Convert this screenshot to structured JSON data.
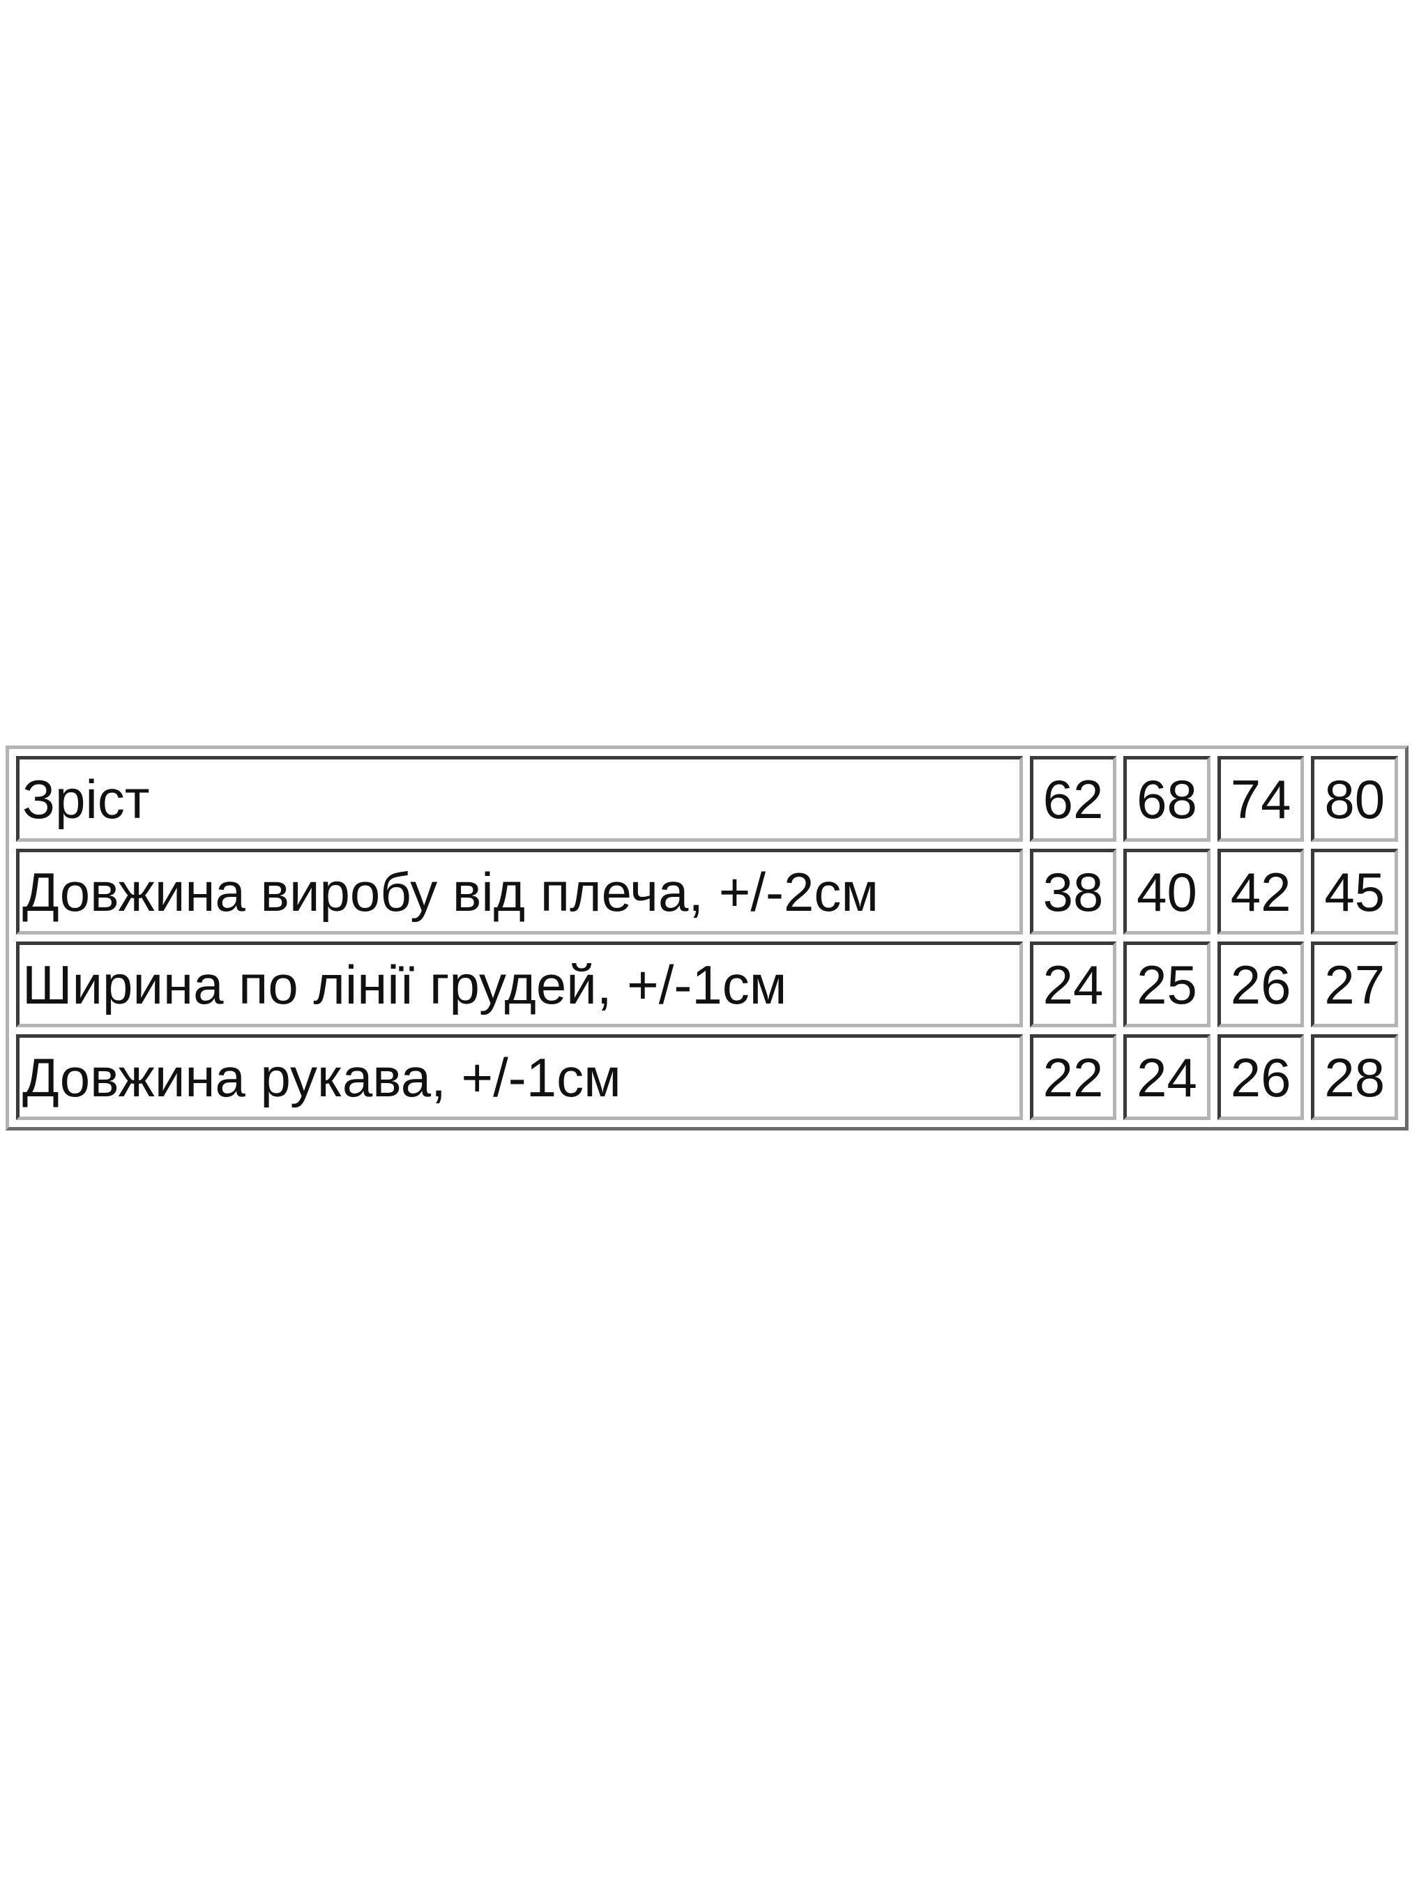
{
  "size_chart": {
    "rows": [
      {
        "label": "Зріст",
        "values": [
          "62",
          "68",
          "74",
          "80"
        ]
      },
      {
        "label": "Довжина виробу від плеча, +/-2см",
        "values": [
          "38",
          "40",
          "42",
          "45"
        ]
      },
      {
        "label": "Ширина по лінії грудей, +/-1см",
        "values": [
          "24",
          "25",
          "26",
          "27"
        ]
      },
      {
        "label": "Довжина рукава, +/-1см",
        "values": [
          "22",
          "24",
          "26",
          "28"
        ]
      }
    ]
  }
}
